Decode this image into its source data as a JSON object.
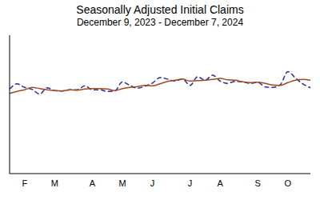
{
  "chart_data": {
    "type": "line",
    "title": "Seasonally Adjusted Initial Claims",
    "subtitle": "December 9, 2023 - December 7, 2024",
    "categories": [
      null,
      null,
      "F",
      null,
      null,
      null,
      "M",
      null,
      null,
      null,
      null,
      "A",
      null,
      null,
      null,
      "M",
      null,
      null,
      null,
      "J",
      null,
      null,
      null,
      null,
      "J",
      null,
      null,
      null,
      "A",
      null,
      null,
      null,
      null,
      "S",
      null,
      null,
      null,
      "O",
      null,
      null,
      null
    ],
    "series": [
      {
        "color": "#2a2a9a",
        "line_style": "dashed",
        "values": [
          214000,
          227000,
          218000,
          213000,
          201000,
          217000,
          210000,
          209000,
          212000,
          212000,
          222000,
          212000,
          212000,
          208000,
          209000,
          232000,
          223000,
          216000,
          221000,
          229000,
          243000,
          239000,
          234000,
          239000,
          223000,
          245000,
          236000,
          249000,
          234000,
          228000,
          233000,
          232000,
          228000,
          231000,
          219000,
          218000,
          225000,
          258000,
          242000,
          227000,
          217000
        ]
      },
      {
        "color": "#9c4a1e",
        "line_style": "solid",
        "values": [
          203000,
          208000,
          212000,
          218000,
          215000,
          212000,
          210000,
          209000,
          212000,
          211000,
          214000,
          215000,
          215000,
          214000,
          210000,
          215000,
          218000,
          220000,
          223000,
          222000,
          227000,
          233000,
          236000,
          239000,
          234000,
          235000,
          236000,
          238000,
          241000,
          237000,
          236000,
          232000,
          230000,
          231000,
          228000,
          224000,
          223000,
          230000,
          236000,
          238000,
          236000
        ]
      }
    ],
    "ylim": [
      0,
      350000
    ],
    "yticks": [
      0,
      50000,
      100000,
      150000,
      200000,
      250000,
      300000,
      350000
    ],
    "grid": false,
    "tick_labels": "x"
  }
}
